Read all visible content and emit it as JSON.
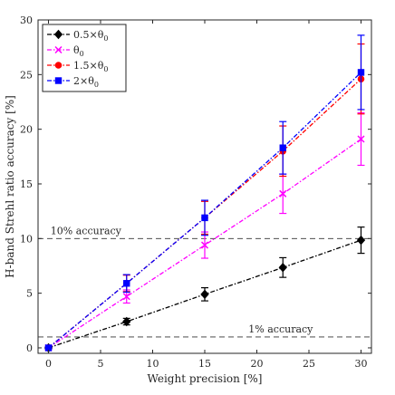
{
  "chart_data": {
    "type": "line",
    "title": "",
    "xlabel": "Weight precision [%]",
    "ylabel": "H-band Strehl ratio accuracy [%]",
    "xlim": [
      -1,
      31
    ],
    "ylim": [
      -0.5,
      30
    ],
    "xticks": [
      0,
      5,
      10,
      15,
      20,
      25,
      30
    ],
    "yticks": [
      0,
      5,
      10,
      15,
      20,
      25,
      30
    ],
    "grid": false,
    "legend_position": "top-left",
    "x": [
      0,
      7.5,
      15,
      22.5,
      30
    ],
    "series": [
      {
        "name": "0.5×θ0",
        "name_base": "0.5×",
        "name_sub": "0",
        "color": "#000000",
        "marker": "diamond",
        "values": [
          0,
          2.4,
          4.9,
          7.35,
          9.85
        ],
        "errors": [
          0.1,
          0.3,
          0.6,
          0.9,
          1.2
        ]
      },
      {
        "name": "θ0",
        "name_base": "",
        "name_sub": "0",
        "color": "#ff00ff",
        "marker": "x",
        "values": [
          0,
          4.7,
          9.4,
          14.1,
          19.1
        ],
        "errors": [
          0.1,
          0.6,
          1.2,
          1.8,
          2.4
        ]
      },
      {
        "name": "1.5×θ0",
        "name_base": "1.5×",
        "name_sub": "0",
        "color": "#ff0000",
        "marker": "circle",
        "values": [
          0,
          5.9,
          11.9,
          18.0,
          24.6
        ],
        "errors": [
          0.1,
          0.75,
          1.5,
          2.3,
          3.2
        ]
      },
      {
        "name": "2×θ0",
        "name_base": "2×",
        "name_sub": "0",
        "color": "#0000ff",
        "marker": "square",
        "values": [
          0,
          5.9,
          11.9,
          18.3,
          25.2
        ],
        "errors": [
          0.1,
          0.8,
          1.6,
          2.4,
          3.4
        ]
      }
    ],
    "reference_lines": [
      {
        "y": 10,
        "label": "10% accuracy",
        "label_x": 0.2
      },
      {
        "y": 1,
        "label": "1% accuracy",
        "label_x": 19.2
      }
    ]
  }
}
